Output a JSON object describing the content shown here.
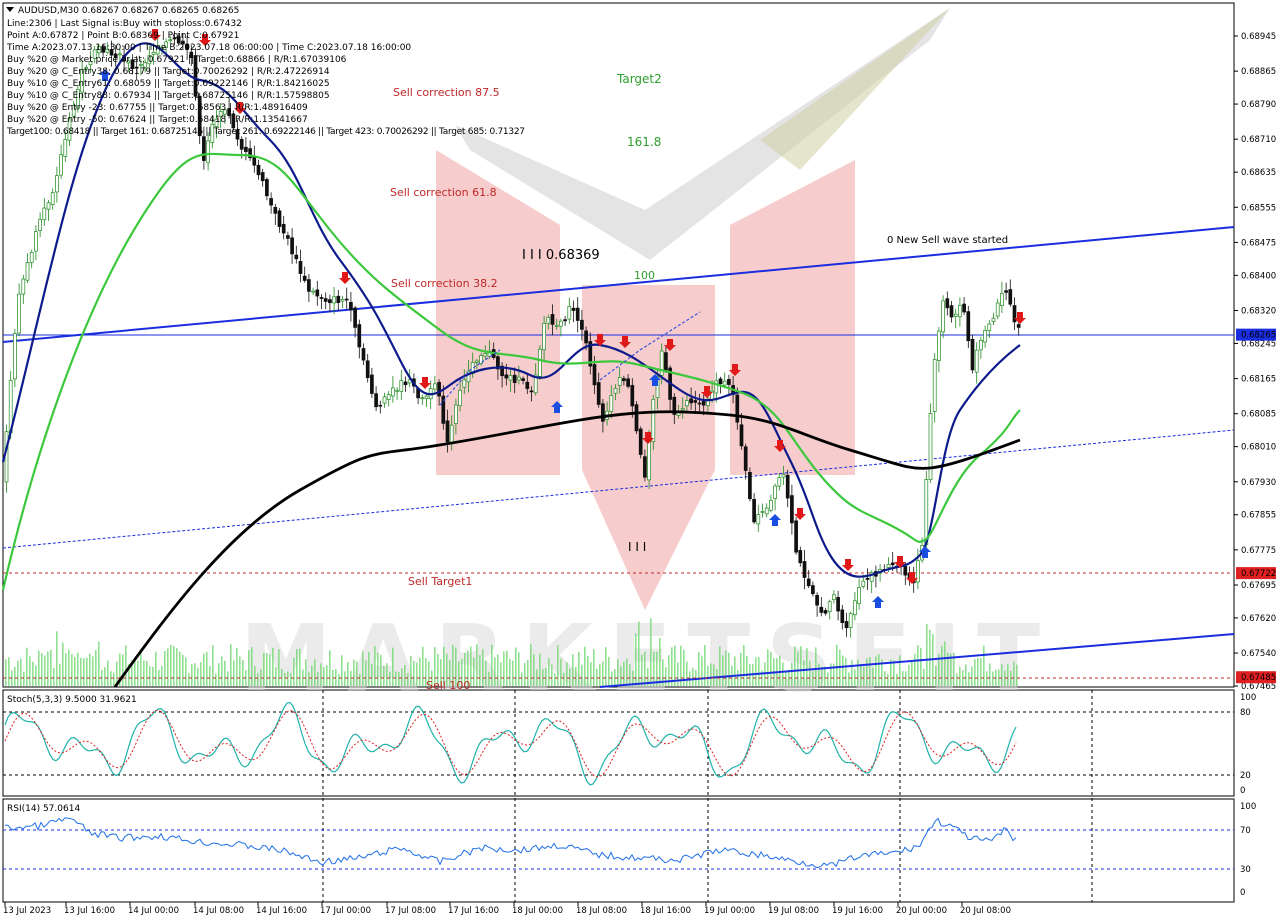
{
  "header": {
    "symbol_line": "AUDUSD,M30  0.68267 0.68267 0.68265 0.68265",
    "info_lines": [
      "Line:2306 | Last Signal is:Buy with stoploss:0.67432",
      "Point A:0.67872 | Point B:0.68369 | Point C:0.67921",
      "Time A:2023.07.13 16:30:00 | Time B:2023.07.18 06:00:00 | Time C:2023.07.18 16:00:00",
      "Buy %20 @ Market price or at: 0.67921 || Target:0.68866 | R/R:1.67039106",
      "Buy %20 @ C_Entry38: 0.68179 || Target:0.70026292 | R/R:2.47226914",
      "Buy %10 @ C_Entry61: 0.68059 || Target:0.69222146 | R/R:1.84216025",
      "Buy %10 @ C_Entry88: 0.67934 || Target:0.68725146 | R/R:1.57598805",
      "Buy %20 @ Entry -23: 0.67755 || Target:0.68563 | R/R:1.48916409",
      "Buy %20 @ Entry -50: 0.67624 || Target:0.68418 | R/R:1.13541667",
      "Target100: 0.68418 || Target 161: 0.68725146 || Target 261: 0.69222146 || Target 423: 0.70026292 || Target 685: 0.71327"
    ]
  },
  "chart_data": {
    "type": "candlestick",
    "symbol": "AUDUSD",
    "timeframe": "M30",
    "ylim": [
      0.67465,
      0.68975
    ],
    "price_ticks": [
      "0.68945",
      "0.68865",
      "0.68790",
      "0.68710",
      "0.68635",
      "0.68555",
      "0.68475",
      "0.68400",
      "0.68320",
      "0.68245",
      "0.68165",
      "0.68085",
      "0.68010",
      "0.67930",
      "0.67855",
      "0.67775",
      "0.67695",
      "0.67620",
      "0.67540",
      "0.67465"
    ],
    "time_ticks": [
      "13 Jul 2023",
      "13 Jul 16:00",
      "14 Jul 00:00",
      "14 Jul 08:00",
      "14 Jul 16:00",
      "17 Jul 00:00",
      "17 Jul 08:00",
      "17 Jul 16:00",
      "18 Jul 00:00",
      "18 Jul 08:00",
      "18 Jul 16:00",
      "19 Jul 00:00",
      "19 Jul 08:00",
      "19 Jul 16:00",
      "20 Jul 00:00",
      "20 Jul 08:00"
    ],
    "current_price": "0.68265",
    "price_labels": [
      {
        "value": "0.67722",
        "color": "#e02020"
      },
      {
        "value": "0.67485",
        "color": "#e02020"
      }
    ],
    "annotations": [
      {
        "text": "Target2",
        "color": "#2e9e2e"
      },
      {
        "text": "161.8",
        "color": "#2e9e2e"
      },
      {
        "text": "100",
        "color": "#2e9e2e"
      },
      {
        "text": "Sell correction 87.5",
        "color": "#c02828"
      },
      {
        "text": "Sell correction 61.8",
        "color": "#c02828"
      },
      {
        "text": "Sell correction 38.2",
        "color": "#c02828"
      },
      {
        "text": "Sell Target1",
        "color": "#c02828"
      },
      {
        "text": "Sell 100",
        "color": "#c02828"
      },
      {
        "text": "0 New Sell wave started",
        "color": "#000000"
      },
      {
        "text": "I I I 0.68369",
        "color": "#000000"
      },
      {
        "text": "I I I",
        "color": "#000000"
      }
    ],
    "stoch": {
      "label": "Stoch(5,3,3) 9.5000 31.9621",
      "levels": [
        "100",
        "80",
        "20",
        "0"
      ]
    },
    "rsi": {
      "label": "RSI(14) 57.0614",
      "levels": [
        "100",
        "70",
        "30",
        "0"
      ]
    },
    "colors": {
      "up": "#2e9e2e",
      "down": "#c02828",
      "ma_fast": "#0d1a8c",
      "ma_mid": "#3cc83c",
      "ma_slow": "#000000",
      "channel": "#1a2ee0"
    }
  }
}
